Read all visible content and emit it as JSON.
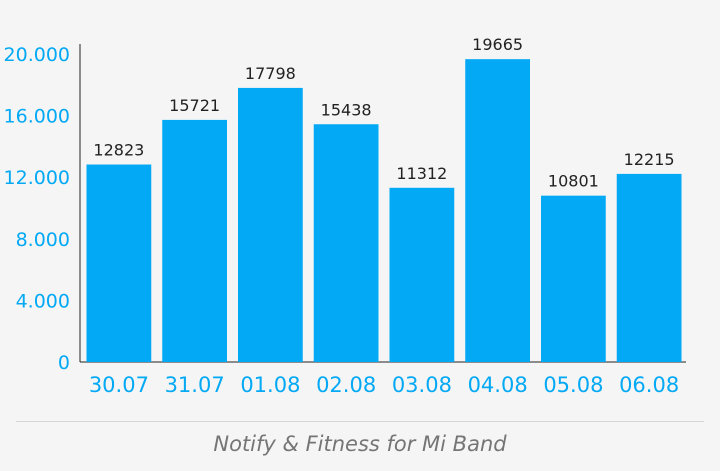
{
  "colors": {
    "bar": "#03a9f4",
    "axis_label": "#03a9f4",
    "value_label": "#222222",
    "footer_text": "#757575",
    "background": "#f5f5f5"
  },
  "chart_data": {
    "type": "bar",
    "categories": [
      "30.07",
      "31.07",
      "01.08",
      "02.08",
      "03.08",
      "04.08",
      "05.08",
      "06.08"
    ],
    "values": [
      12823,
      15721,
      17798,
      15438,
      11312,
      19665,
      10801,
      12215
    ],
    "y_ticks": [
      0,
      4000,
      8000,
      12000,
      16000,
      20000
    ],
    "y_tick_labels": [
      "0",
      "4.000",
      "8.000",
      "12.000",
      "16.000",
      "20.000"
    ],
    "ylim": [
      0,
      20000
    ],
    "title": "",
    "xlabel": "",
    "ylabel": "",
    "grid": false,
    "legend": "none"
  },
  "footer": {
    "text": "Notify & Fitness for Mi Band"
  }
}
